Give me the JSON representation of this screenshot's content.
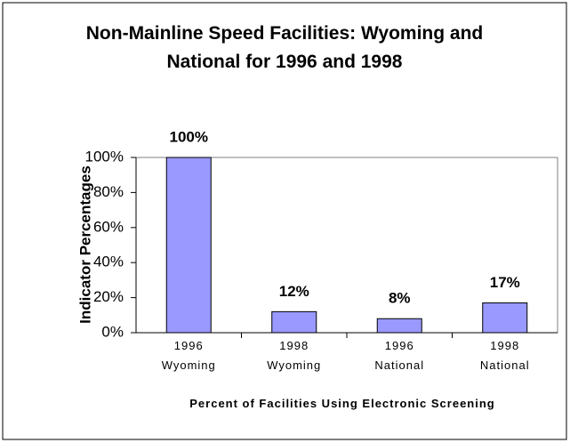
{
  "chart_data": {
    "type": "bar",
    "title": "Non-Mainline Speed Facilities: Wyoming and National for 1996 and 1998",
    "y_label": "Indicator Percentages",
    "x_label": "Percent of Facilities Using Electronic Screening",
    "categories": [
      "1996\nWyoming",
      "1998\nWyoming",
      "1996\nNational",
      "1998\nNational"
    ],
    "values": [
      100,
      12,
      8,
      17
    ],
    "value_labels": [
      "100%",
      "12%",
      "8%",
      "17%"
    ],
    "color": "#9999ff",
    "ylim": [
      0,
      100
    ],
    "yticks": [
      {
        "value": 0,
        "label": "0%"
      },
      {
        "value": 20,
        "label": "20%"
      },
      {
        "value": 40,
        "label": "40%"
      },
      {
        "value": 60,
        "label": "60%"
      },
      {
        "value": 80,
        "label": "80%"
      },
      {
        "value": 100,
        "label": "100%"
      }
    ],
    "grid": false
  }
}
